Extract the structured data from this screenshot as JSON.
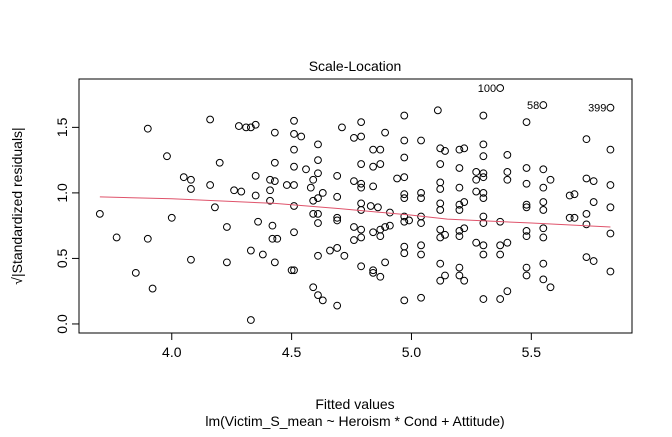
{
  "chart_data": {
    "type": "scatter",
    "title": "Scale-Location",
    "xlabel": "Fitted values",
    "subtitle": "lm(Victim_S_mean ~ Heroism * Cond + Attitude)",
    "ylabel": "√|Standardized residuals|",
    "xlim": [
      3.613,
      5.92
    ],
    "ylim": [
      -0.069,
      1.869
    ],
    "x_ticks": [
      {
        "value": 4.0,
        "label": "4.0"
      },
      {
        "value": 4.5,
        "label": "4.5"
      },
      {
        "value": 5.0,
        "label": "5.0"
      },
      {
        "value": 5.5,
        "label": "5.5"
      }
    ],
    "y_ticks": [
      {
        "value": 0.0,
        "label": "0.0"
      },
      {
        "value": 0.5,
        "label": "0.5"
      },
      {
        "value": 1.0,
        "label": "1.0"
      },
      {
        "value": 1.5,
        "label": "1.5"
      }
    ],
    "grid": false,
    "colors": {
      "points": "#000000",
      "smoother": "#DF536B"
    },
    "labeled_points": [
      {
        "label": "100",
        "x": 5.37,
        "y": 1.8
      },
      {
        "label": "58",
        "x": 5.55,
        "y": 1.67
      },
      {
        "label": "399",
        "x": 5.83,
        "y": 1.65
      }
    ],
    "smoother": [
      [
        3.7,
        0.97
      ],
      [
        4.0,
        0.955
      ],
      [
        4.43,
        0.92
      ],
      [
        4.7,
        0.88
      ],
      [
        5.0,
        0.83
      ],
      [
        5.15,
        0.8
      ],
      [
        5.5,
        0.77
      ],
      [
        5.83,
        0.74
      ]
    ],
    "points": [
      [
        3.7,
        0.84
      ],
      [
        3.77,
        0.66
      ],
      [
        3.85,
        0.39
      ],
      [
        3.9,
        1.49
      ],
      [
        3.9,
        0.65
      ],
      [
        3.92,
        0.27
      ],
      [
        3.98,
        1.28
      ],
      [
        4.0,
        0.81
      ],
      [
        4.05,
        1.12
      ],
      [
        4.08,
        1.1
      ],
      [
        4.08,
        1.03
      ],
      [
        4.08,
        0.49
      ],
      [
        4.16,
        1.56
      ],
      [
        4.16,
        1.06
      ],
      [
        4.18,
        0.89
      ],
      [
        4.2,
        1.23
      ],
      [
        4.23,
        0.74
      ],
      [
        4.23,
        0.47
      ],
      [
        4.26,
        1.02
      ],
      [
        4.29,
        1.01
      ],
      [
        4.28,
        1.51
      ],
      [
        4.31,
        1.5
      ],
      [
        4.33,
        1.5
      ],
      [
        4.35,
        1.52
      ],
      [
        4.33,
        0.03
      ],
      [
        4.33,
        0.56
      ],
      [
        4.35,
        1.13
      ],
      [
        4.35,
        0.98
      ],
      [
        4.36,
        0.78
      ],
      [
        4.38,
        0.53
      ],
      [
        4.41,
        1.1
      ],
      [
        4.41,
        1.02
      ],
      [
        4.41,
        0.94
      ],
      [
        4.42,
        0.75
      ],
      [
        4.42,
        0.65
      ],
      [
        4.44,
        0.65
      ],
      [
        4.43,
        0.47
      ],
      [
        4.43,
        1.46
      ],
      [
        4.43,
        1.23
      ],
      [
        4.43,
        1.09
      ],
      [
        4.51,
        1.55
      ],
      [
        4.51,
        1.45
      ],
      [
        4.54,
        1.43
      ],
      [
        4.51,
        1.33
      ],
      [
        4.51,
        1.2
      ],
      [
        4.56,
        1.18
      ],
      [
        4.51,
        1.06
      ],
      [
        4.48,
        1.06
      ],
      [
        4.51,
        0.9
      ],
      [
        4.51,
        0.7
      ],
      [
        4.5,
        0.41
      ],
      [
        4.51,
        0.41
      ],
      [
        4.59,
        1.1
      ],
      [
        4.58,
        1.04
      ],
      [
        4.59,
        0.94
      ],
      [
        4.59,
        0.84
      ],
      [
        4.59,
        0.28
      ],
      [
        4.61,
        1.37
      ],
      [
        4.61,
        1.25
      ],
      [
        4.61,
        1.15
      ],
      [
        4.61,
        0.96
      ],
      [
        4.61,
        0.84
      ],
      [
        4.61,
        0.77
      ],
      [
        4.61,
        0.52
      ],
      [
        4.61,
        0.22
      ],
      [
        4.63,
        1.0
      ],
      [
        4.63,
        0.18
      ],
      [
        4.66,
        0.56
      ],
      [
        4.69,
        0.58
      ],
      [
        4.69,
        1.13
      ],
      [
        4.69,
        0.97
      ],
      [
        4.69,
        0.81
      ],
      [
        4.69,
        0.79
      ],
      [
        4.69,
        0.14
      ],
      [
        4.71,
        1.5
      ],
      [
        4.72,
        0.52
      ],
      [
        4.76,
        1.42
      ],
      [
        4.76,
        1.09
      ],
      [
        4.76,
        0.74
      ],
      [
        4.76,
        0.64
      ],
      [
        4.79,
        1.54
      ],
      [
        4.79,
        1.43
      ],
      [
        4.79,
        1.22
      ],
      [
        4.79,
        1.07
      ],
      [
        4.79,
        1.04
      ],
      [
        4.79,
        0.92
      ],
      [
        4.79,
        0.87
      ],
      [
        4.79,
        0.72
      ],
      [
        4.79,
        0.66
      ],
      [
        4.79,
        0.44
      ],
      [
        4.83,
        0.9
      ],
      [
        4.84,
        1.33
      ],
      [
        4.84,
        1.2
      ],
      [
        4.84,
        1.05
      ],
      [
        4.84,
        0.7
      ],
      [
        4.84,
        0.41
      ],
      [
        4.84,
        0.39
      ],
      [
        4.87,
        1.33
      ],
      [
        4.87,
        1.22
      ],
      [
        4.86,
        0.89
      ],
      [
        4.87,
        0.72
      ],
      [
        4.87,
        0.67
      ],
      [
        4.87,
        0.36
      ],
      [
        4.89,
        1.46
      ],
      [
        4.89,
        0.74
      ],
      [
        4.89,
        0.47
      ],
      [
        4.91,
        0.85
      ],
      [
        4.91,
        0.75
      ],
      [
        4.94,
        1.11
      ],
      [
        4.97,
        1.59
      ],
      [
        4.97,
        1.4
      ],
      [
        4.97,
        1.27
      ],
      [
        4.97,
        1.12
      ],
      [
        4.97,
        0.99
      ],
      [
        4.97,
        0.96
      ],
      [
        4.97,
        0.82
      ],
      [
        4.97,
        0.78
      ],
      [
        4.97,
        0.59
      ],
      [
        4.97,
        0.54
      ],
      [
        4.97,
        0.18
      ],
      [
        4.99,
        0.79
      ],
      [
        5.04,
        1.4
      ],
      [
        5.04,
        1.0
      ],
      [
        5.04,
        0.96
      ],
      [
        5.04,
        0.82
      ],
      [
        5.04,
        0.77
      ],
      [
        5.04,
        0.6
      ],
      [
        5.04,
        0.53
      ],
      [
        5.04,
        0.2
      ],
      [
        5.11,
        1.63
      ],
      [
        5.12,
        1.34
      ],
      [
        5.14,
        1.32
      ],
      [
        5.12,
        1.22
      ],
      [
        5.12,
        1.08
      ],
      [
        5.12,
        1.03
      ],
      [
        5.12,
        0.92
      ],
      [
        5.12,
        0.87
      ],
      [
        5.12,
        0.72
      ],
      [
        5.12,
        0.66
      ],
      [
        5.14,
        0.68
      ],
      [
        5.12,
        0.46
      ],
      [
        5.14,
        0.37
      ],
      [
        5.12,
        0.33
      ],
      [
        5.2,
        1.33
      ],
      [
        5.22,
        1.34
      ],
      [
        5.2,
        1.19
      ],
      [
        5.2,
        1.04
      ],
      [
        5.2,
        0.91
      ],
      [
        5.2,
        0.87
      ],
      [
        5.22,
        0.93
      ],
      [
        5.2,
        0.71
      ],
      [
        5.2,
        0.67
      ],
      [
        5.22,
        0.73
      ],
      [
        5.2,
        0.43
      ],
      [
        5.2,
        0.37
      ],
      [
        5.22,
        0.33
      ],
      [
        5.27,
        1.16
      ],
      [
        5.27,
        1.1
      ],
      [
        5.27,
        1.01
      ],
      [
        5.3,
        1.59
      ],
      [
        5.3,
        1.37
      ],
      [
        5.3,
        1.28
      ],
      [
        5.3,
        1.15
      ],
      [
        5.3,
        1.12
      ],
      [
        5.3,
        1.0
      ],
      [
        5.3,
        0.96
      ],
      [
        5.3,
        0.82
      ],
      [
        5.3,
        0.77
      ],
      [
        5.27,
        0.62
      ],
      [
        5.3,
        0.6
      ],
      [
        5.3,
        0.53
      ],
      [
        5.3,
        0.19
      ],
      [
        5.37,
        0.78
      ],
      [
        5.37,
        0.6
      ],
      [
        5.37,
        0.53
      ],
      [
        5.4,
        0.62
      ],
      [
        5.37,
        0.19
      ],
      [
        5.4,
        0.25
      ],
      [
        5.4,
        1.29
      ],
      [
        5.4,
        1.16
      ],
      [
        5.4,
        1.1
      ],
      [
        5.48,
        1.54
      ],
      [
        5.48,
        1.19
      ],
      [
        5.48,
        1.07
      ],
      [
        5.48,
        0.91
      ],
      [
        5.48,
        0.89
      ],
      [
        5.48,
        0.71
      ],
      [
        5.48,
        0.67
      ],
      [
        5.48,
        0.43
      ],
      [
        5.48,
        0.37
      ],
      [
        5.55,
        1.18
      ],
      [
        5.58,
        1.1
      ],
      [
        5.55,
        1.04
      ],
      [
        5.55,
        0.93
      ],
      [
        5.55,
        0.87
      ],
      [
        5.55,
        0.73
      ],
      [
        5.55,
        0.66
      ],
      [
        5.55,
        0.46
      ],
      [
        5.55,
        0.34
      ],
      [
        5.58,
        0.28
      ],
      [
        5.66,
        0.98
      ],
      [
        5.68,
        0.99
      ],
      [
        5.66,
        0.81
      ],
      [
        5.68,
        0.81
      ],
      [
        5.73,
        1.41
      ],
      [
        5.73,
        1.11
      ],
      [
        5.76,
        1.09
      ],
      [
        5.76,
        0.93
      ],
      [
        5.73,
        0.84
      ],
      [
        5.73,
        0.76
      ],
      [
        5.73,
        0.51
      ],
      [
        5.76,
        0.48
      ],
      [
        5.83,
        1.33
      ],
      [
        5.83,
        1.06
      ],
      [
        5.83,
        0.89
      ],
      [
        5.83,
        0.69
      ],
      [
        5.83,
        0.4
      ]
    ]
  }
}
